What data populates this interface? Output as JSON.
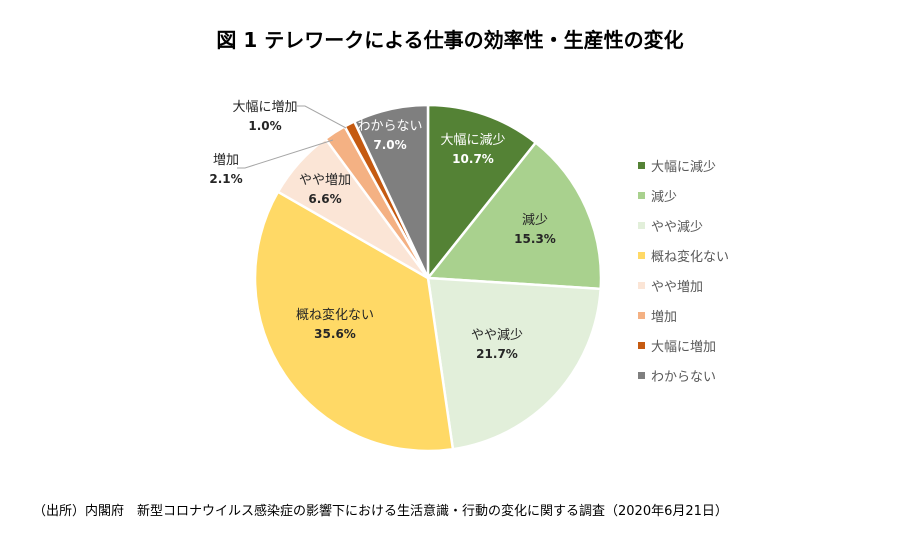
{
  "chart_data": {
    "type": "pie",
    "title": "図 1 テレワークによる仕事の効率性・生産性の変化",
    "categories": [
      "大幅に減少",
      "減少",
      "やや減少",
      "概ね変化ない",
      "やや増加",
      "増加",
      "大幅に増加",
      "わからない"
    ],
    "values": [
      10.7,
      15.3,
      21.7,
      35.6,
      6.6,
      2.1,
      1.0,
      7.0
    ],
    "data_labels": [
      "10.7%",
      "15.3%",
      "21.7%",
      "35.6%",
      "6.6%",
      "2.1%",
      "1.0%",
      "7.0%"
    ],
    "colors": [
      "#548235",
      "#A9D18E",
      "#E2EFDA",
      "#FFD966",
      "#FBE5D6",
      "#F4B183",
      "#C55A11",
      "#7F7F7F"
    ],
    "start": "top",
    "direction": "clockwise",
    "legend_position": "right"
  },
  "source": "（出所）内閣府　新型コロナウイルス感染症の影響下における生活意識・行動の変化に関する調査（2020年6月21日）"
}
